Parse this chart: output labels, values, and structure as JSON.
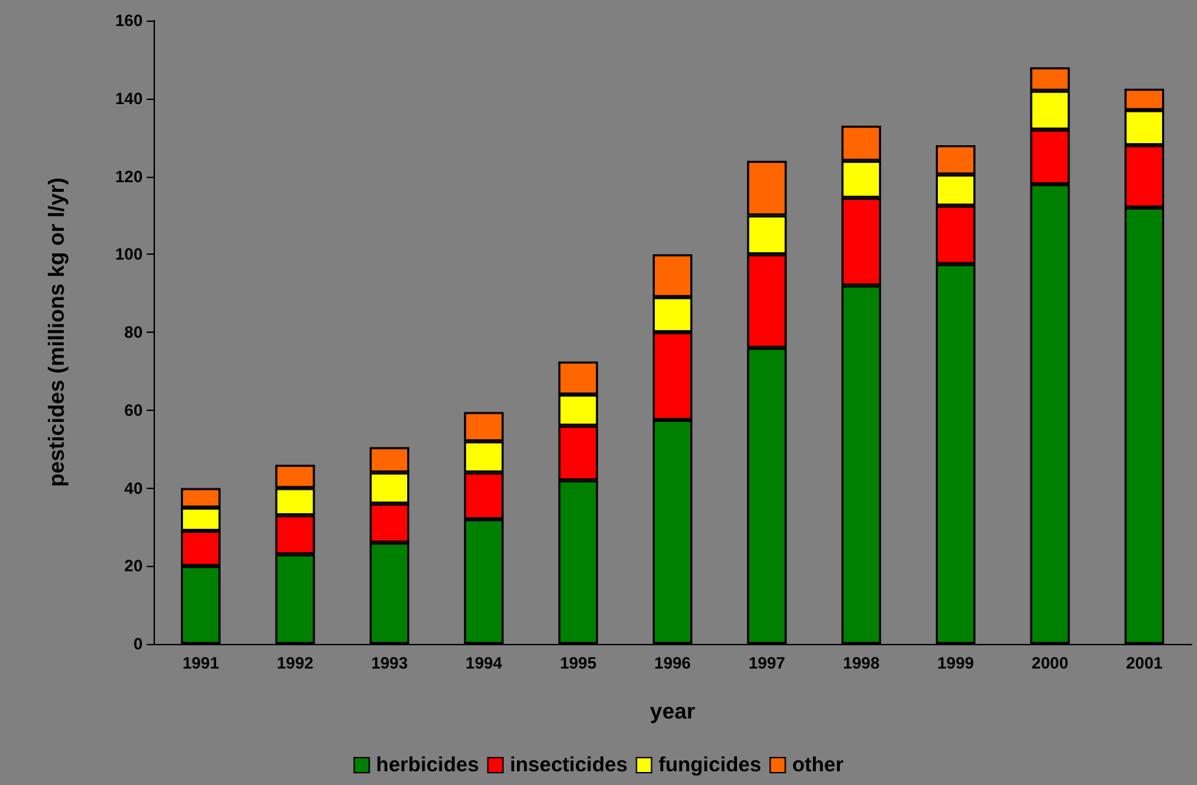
{
  "chart_data": {
    "type": "bar",
    "stacked": true,
    "xlabel": "year",
    "ylabel": "pesticides (millions kg or l/yr)",
    "categories": [
      "1991",
      "1992",
      "1993",
      "1994",
      "1995",
      "1996",
      "1997",
      "1998",
      "1999",
      "2000",
      "2001"
    ],
    "series": [
      {
        "name": "herbicides",
        "color": "#008000",
        "values": [
          20,
          23,
          26,
          32,
          42,
          57.5,
          76,
          92,
          97.5,
          118,
          112
        ]
      },
      {
        "name": "insecticides",
        "color": "#ff0000",
        "values": [
          9,
          10,
          10,
          12,
          14,
          22.5,
          24,
          22.5,
          15,
          14,
          16
        ]
      },
      {
        "name": "fungicides",
        "color": "#ffff00",
        "values": [
          6,
          7,
          8,
          8,
          8,
          9,
          10,
          9.5,
          8,
          10,
          9
        ]
      },
      {
        "name": "other",
        "color": "#ff6600",
        "values": [
          5,
          6,
          6.5,
          7.5,
          8.5,
          11,
          14,
          9,
          7.5,
          6,
          5.5
        ]
      }
    ],
    "ylim": [
      0,
      160
    ],
    "yticks": [
      0,
      20,
      40,
      60,
      80,
      100,
      120,
      140,
      160
    ],
    "grid": false,
    "legend": "bottom"
  }
}
